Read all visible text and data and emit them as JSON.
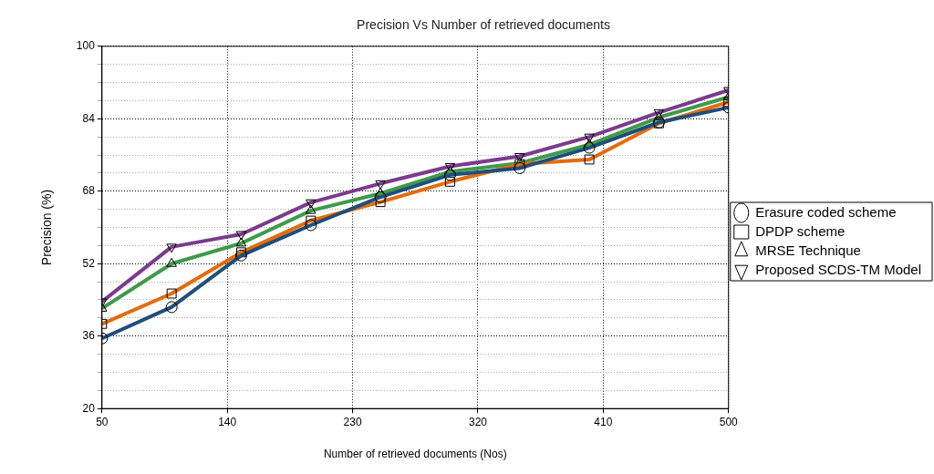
{
  "chart_data": {
    "type": "line",
    "title": "Precision Vs Number of retrieved documents",
    "xlabel": "Number of retrieved documents (Nos)",
    "ylabel": "Precision (%)",
    "x": [
      50,
      100,
      150,
      200,
      250,
      300,
      350,
      400,
      450,
      500
    ],
    "series": [
      {
        "name": "Erasure coded scheme",
        "color": "#1f4e79",
        "marker": "circle",
        "values": [
          35.5,
          42.4,
          53.8,
          60.5,
          66.7,
          71.6,
          73.1,
          77.6,
          83.2,
          86.5
        ]
      },
      {
        "name": "DPDP scheme",
        "color": "#e36c0a",
        "marker": "square",
        "values": [
          38.7,
          45.4,
          54.5,
          61.5,
          65.6,
          70.1,
          74,
          75,
          83,
          87.7
        ]
      },
      {
        "name": "MRSE Technique",
        "color": "#3f9a4a",
        "marker": "triangle",
        "values": [
          42.1,
          52,
          56.5,
          63.7,
          67.5,
          72.3,
          74.2,
          78.3,
          84.3,
          88.8
        ]
      },
      {
        "name": "Proposed SCDS-TM Model",
        "color": "#7b3b8c",
        "marker": "triangle",
        "values": [
          43.6,
          55.7,
          58.5,
          65.5,
          69.7,
          73.5,
          75.7,
          80,
          85.4,
          90.3
        ]
      }
    ],
    "xlim": [
      50,
      500
    ],
    "xticks": [
      50,
      140,
      230,
      320,
      410,
      500
    ],
    "ylim": [
      20,
      100
    ],
    "yticks": [
      20,
      {
        "value": 24,
        "label": null
      },
      {
        "value": 28,
        "label": null
      },
      {
        "value": 32,
        "label": null
      },
      36,
      {
        "value": 40,
        "label": null
      },
      {
        "value": 44,
        "label": null
      },
      {
        "value": 48,
        "label": null
      },
      52,
      {
        "value": 56,
        "label": null
      },
      {
        "value": 60,
        "label": null
      },
      {
        "value": 64,
        "label": null
      },
      68,
      {
        "value": 72,
        "label": null
      },
      {
        "value": 76,
        "label": null
      },
      {
        "value": 80,
        "label": null
      },
      84,
      {
        "value": 88,
        "label": null
      },
      {
        "value": 92,
        "label": null
      },
      {
        "value": 96,
        "label": null
      },
      100
    ],
    "grid": true,
    "legend": "right",
    "line_style": "solid"
  }
}
